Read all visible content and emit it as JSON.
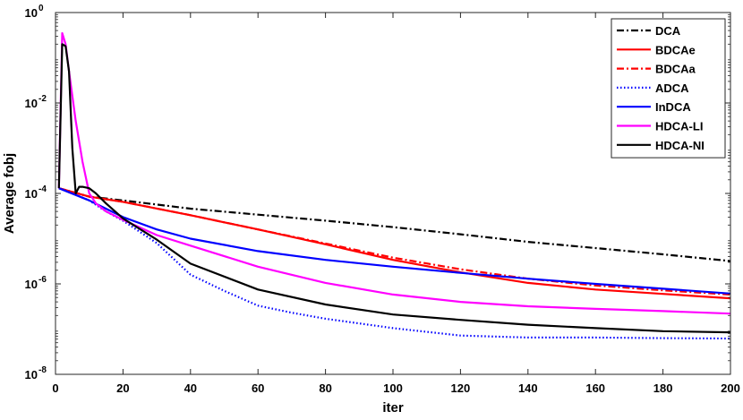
{
  "chart_data": {
    "type": "line",
    "title": "",
    "xlabel": "iter",
    "ylabel": "Average fobj",
    "xlim": [
      0,
      200
    ],
    "ylim": [
      1e-08,
      1
    ],
    "yscale": "log",
    "grid": false,
    "legend_position": "top-right",
    "xticks": [
      0,
      20,
      40,
      60,
      80,
      100,
      120,
      140,
      160,
      180,
      200
    ],
    "xtick_labels": [
      "0",
      "20",
      "40",
      "60",
      "80",
      "100",
      "120",
      "140",
      "160",
      "180",
      "200"
    ],
    "yticks": [
      1e-08,
      1e-06,
      0.0001,
      0.01,
      1
    ],
    "ytick_labels": [
      {
        "base": "10",
        "exp": "-8"
      },
      {
        "base": "10",
        "exp": "-6"
      },
      {
        "base": "10",
        "exp": "-4"
      },
      {
        "base": "10",
        "exp": "-2"
      },
      {
        "base": "10",
        "exp": "0"
      }
    ],
    "series": [
      {
        "name": "DCA",
        "color": "#000000",
        "style": "dashdot",
        "x": [
          1,
          10,
          20,
          40,
          60,
          80,
          100,
          120,
          140,
          160,
          180,
          200
        ],
        "y": [
          0.00013,
          8.5e-05,
          7e-05,
          4.6e-05,
          3.4e-05,
          2.5e-05,
          1.8e-05,
          1.25e-05,
          8.5e-06,
          6.2e-06,
          4.5e-06,
          3.2e-06
        ]
      },
      {
        "name": "BDCAe",
        "color": "#ff0000",
        "style": "solid",
        "x": [
          1,
          10,
          20,
          40,
          60,
          80,
          100,
          120,
          140,
          160,
          180,
          200
        ],
        "y": [
          0.00013,
          8.5e-05,
          6.5e-05,
          3.3e-05,
          1.6e-05,
          7.5e-06,
          3.4e-06,
          1.8e-06,
          1.05e-06,
          7.5e-07,
          6e-07,
          4.8e-07
        ]
      },
      {
        "name": "BDCAa",
        "color": "#ff0000",
        "style": "dashdot",
        "x": [
          1,
          10,
          20,
          40,
          60,
          80,
          100,
          120,
          140,
          160,
          180,
          200
        ],
        "y": [
          0.00013,
          8.5e-05,
          6.5e-05,
          3.3e-05,
          1.6e-05,
          7.8e-06,
          3.8e-06,
          2.1e-06,
          1.3e-06,
          9.2e-07,
          7.2e-07,
          5.8e-07
        ]
      },
      {
        "name": "ADCA",
        "color": "#0000ff",
        "style": "dotted",
        "x": [
          1,
          5,
          10,
          15,
          20,
          30,
          40,
          50,
          60,
          70,
          80,
          100,
          120,
          140,
          160,
          180,
          200
        ],
        "y": [
          0.00013,
          0.0001,
          7e-05,
          4e-05,
          2.5e-05,
          8e-06,
          1.6e-06,
          7e-07,
          3.3e-07,
          2.3e-07,
          1.7e-07,
          1.05e-07,
          7.2e-08,
          6.5e-08,
          6.5e-08,
          6.3e-08,
          6.2e-08
        ]
      },
      {
        "name": "InDCA",
        "color": "#0000ff",
        "style": "solid",
        "x": [
          1,
          10,
          20,
          30,
          40,
          60,
          80,
          100,
          120,
          140,
          160,
          180,
          200
        ],
        "y": [
          0.00013,
          7e-05,
          3e-05,
          1.6e-05,
          1e-05,
          5.3e-06,
          3.4e-06,
          2.4e-06,
          1.75e-06,
          1.3e-06,
          1e-06,
          7.8e-07,
          6.1e-07
        ]
      },
      {
        "name": "HDCA-LI",
        "color": "#ff00ff",
        "style": "solid",
        "x": [
          1,
          2,
          3,
          4,
          6,
          8,
          10,
          12,
          15,
          20,
          30,
          40,
          60,
          80,
          100,
          120,
          140,
          160,
          180,
          200
        ],
        "y": [
          0.00013,
          0.35,
          0.2,
          0.05,
          0.004,
          0.0005,
          0.0001,
          6e-05,
          4e-05,
          2.6e-05,
          1.2e-05,
          7e-06,
          2.4e-06,
          1.05e-06,
          5.8e-07,
          4e-07,
          3.2e-07,
          2.8e-07,
          2.5e-07,
          2.2e-07
        ]
      },
      {
        "name": "HDCA-NI",
        "color": "#000000",
        "style": "solid",
        "x": [
          1,
          2,
          3,
          4,
          5,
          6,
          7,
          8,
          10,
          12,
          15,
          20,
          30,
          40,
          60,
          80,
          100,
          120,
          140,
          160,
          180,
          200
        ],
        "y": [
          0.00013,
          0.2,
          0.18,
          0.05,
          0.001,
          0.0001,
          0.00014,
          0.00014,
          0.00013,
          0.0001,
          6e-05,
          2.8e-05,
          9.5e-06,
          2.8e-06,
          7.5e-07,
          3.5e-07,
          2.1e-07,
          1.6e-07,
          1.25e-07,
          1.05e-07,
          9e-08,
          8.5e-08
        ]
      }
    ]
  }
}
